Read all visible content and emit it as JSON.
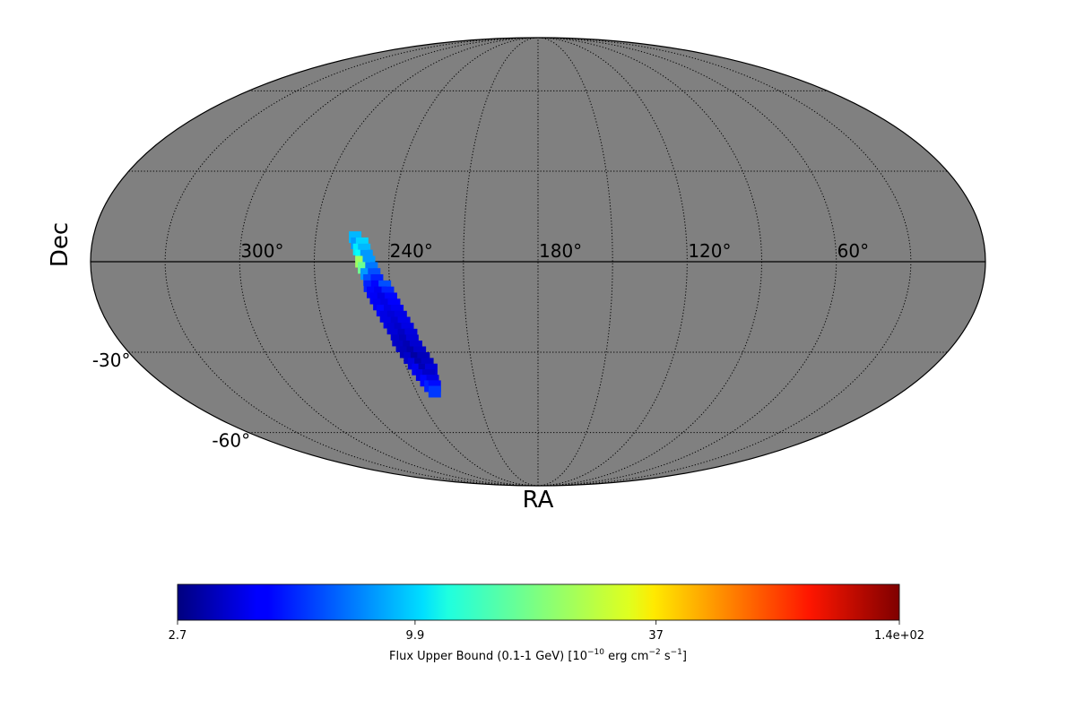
{
  "chart_data": {
    "type": "skymap",
    "projection": "mollweide",
    "xlabel": "RA",
    "ylabel": "Dec",
    "background": "#808080",
    "xticks": [
      {
        "value": 300,
        "label": "300°"
      },
      {
        "value": 240,
        "label": "240°"
      },
      {
        "value": 180,
        "label": "180°"
      },
      {
        "value": 120,
        "label": "120°"
      },
      {
        "value": 60,
        "label": "60°"
      }
    ],
    "yticks": [
      {
        "value": -30,
        "label": "-30°"
      },
      {
        "value": -60,
        "label": "-60°"
      }
    ],
    "graticule": {
      "ra_step": 30,
      "dec_step": 30
    },
    "pixels": {
      "ra": [
        254,
        253,
        251,
        252,
        250,
        251,
        249,
        251,
        248,
        250,
        247,
        249,
        246,
        248,
        245,
        248,
        245,
        242,
        247,
        244,
        241,
        246,
        243,
        240,
        245,
        242,
        239,
        244,
        241,
        238,
        243,
        240,
        237,
        242,
        239,
        236,
        241,
        238,
        235,
        240,
        237,
        234,
        240,
        237,
        234,
        239,
        236,
        233,
        238,
        235,
        232,
        237,
        234,
        231,
        236,
        233,
        230,
        235,
        232,
        229,
        234,
        231,
        233,
        230,
        232,
        230,
        231
      ],
      "dec": [
        8,
        6,
        6,
        4,
        4,
        2,
        2,
        0,
        0,
        -2,
        -2,
        -4,
        -4,
        -6,
        -6,
        -8,
        -8,
        -8,
        -10,
        -10,
        -10,
        -12,
        -12,
        -12,
        -14,
        -14,
        -14,
        -16,
        -16,
        -16,
        -18,
        -18,
        -18,
        -20,
        -20,
        -20,
        -22,
        -22,
        -22,
        -24,
        -24,
        -24,
        -26,
        -26,
        -26,
        -28,
        -28,
        -28,
        -30,
        -30,
        -30,
        -32,
        -32,
        -32,
        -34,
        -34,
        -34,
        -36,
        -36,
        -36,
        -38,
        -38,
        -40,
        -40,
        -42,
        -42,
        -44
      ],
      "values": [
        9,
        8,
        10,
        11,
        9,
        12,
        8,
        22,
        8,
        18,
        7,
        8,
        6,
        6,
        5,
        5,
        4.5,
        6,
        4.5,
        4.2,
        5,
        4.3,
        4,
        4.5,
        4.2,
        4,
        4.4,
        4.5,
        4,
        4.2,
        4,
        3.8,
        4,
        4,
        3.7,
        4.1,
        3.8,
        3.6,
        4,
        3.8,
        3.5,
        3.9,
        3.6,
        3.4,
        3.8,
        3.5,
        3.3,
        3.7,
        3.4,
        3.2,
        3.6,
        3.6,
        3.1,
        3.4,
        3.9,
        3.2,
        3.5,
        4.2,
        3.3,
        3.8,
        4,
        3.6,
        4.5,
        4,
        5,
        4.6,
        5.5
      ]
    },
    "colorbar": {
      "colormap": "jet",
      "scale": "log",
      "clim": [
        2.7,
        140
      ],
      "ticks": [
        2.7,
        9.9,
        37,
        {
          "value": 140,
          "label": "1.4e+02"
        }
      ],
      "label": [
        "Flux Upper Bound (0.1-1 GeV) [10",
        "−10",
        " erg cm",
        "−2",
        " s",
        "−1",
        "]"
      ]
    }
  }
}
